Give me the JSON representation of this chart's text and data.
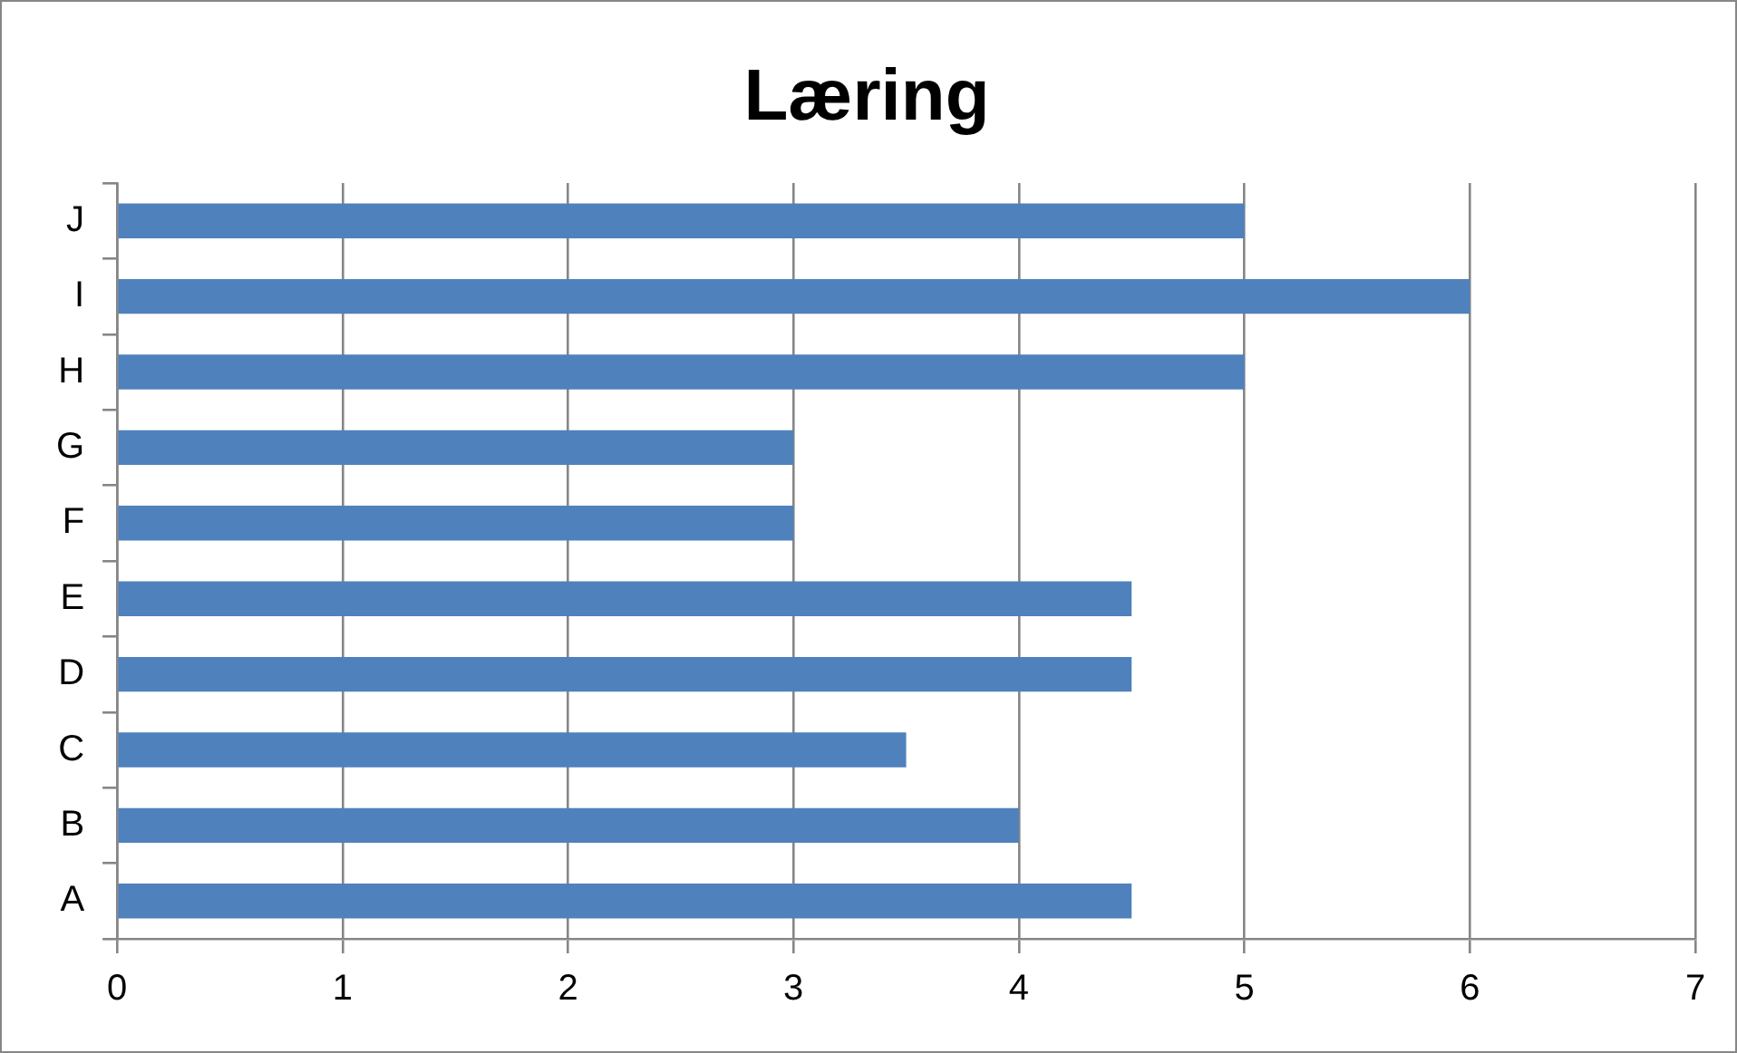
{
  "chart_data": {
    "type": "bar",
    "orientation": "horizontal",
    "title": "Læring",
    "categories": [
      "J",
      "I",
      "H",
      "G",
      "F",
      "E",
      "D",
      "C",
      "B",
      "A"
    ],
    "values": [
      5,
      6,
      5,
      3,
      3,
      4.5,
      4.5,
      3.5,
      4,
      4.5
    ],
    "color": "#4f81bd",
    "xlim": [
      0,
      7
    ],
    "xticks": [
      0,
      1,
      2,
      3,
      4,
      5,
      6,
      7
    ],
    "grid": "x",
    "legend": false
  }
}
